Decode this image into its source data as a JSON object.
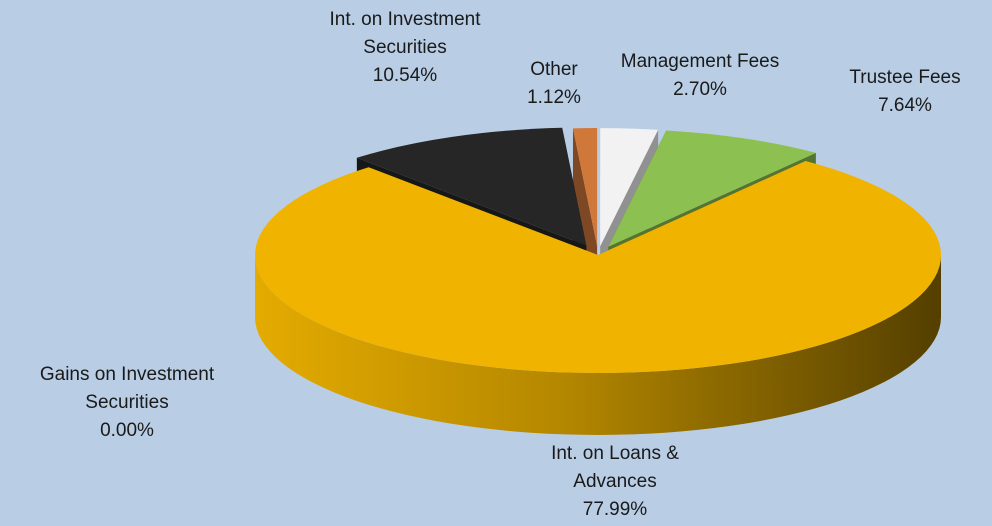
{
  "chart_data": {
    "type": "pie",
    "3d": true,
    "categories": [
      "Management Fees",
      "Trustee Fees",
      "Int. on Loans & Advances",
      "Gains on Investment Securities",
      "Int. on Investment Securities",
      "Other"
    ],
    "values": [
      2.7,
      7.64,
      77.99,
      0.0,
      10.54,
      1.12
    ],
    "value_labels": [
      "2.70%",
      "7.64%",
      "77.99%",
      "0.00%",
      "10.54%",
      "1.12%"
    ],
    "colors": [
      "#f2f2f2",
      "#8cc152",
      "#f0b400",
      "#4f81bd",
      "#262626",
      "#d0783a"
    ]
  }
}
